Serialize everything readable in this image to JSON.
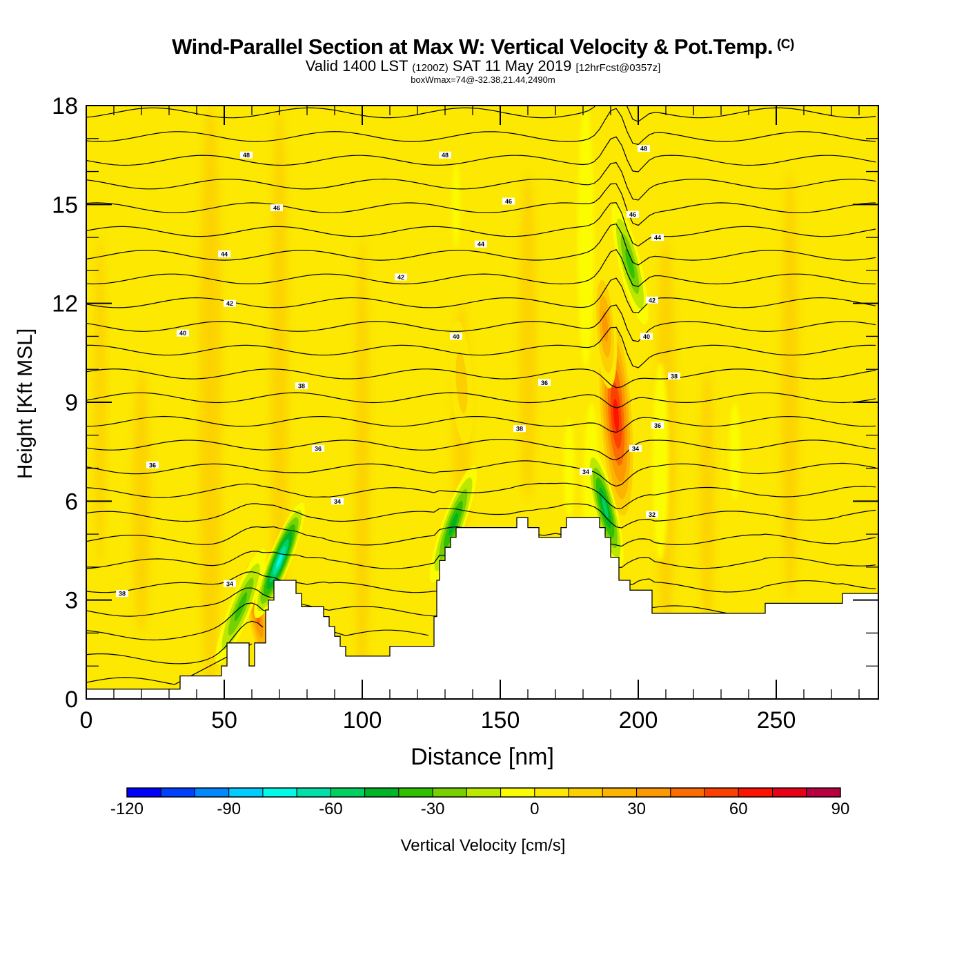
{
  "header": {
    "title": "Wind-Parallel Section at Max W: Vertical Velocity & Pot.Temp.",
    "copyright": "(C)",
    "subtitle_prefix": "Valid 1400 LST",
    "subtitle_utc": "(1200Z)",
    "subtitle_date": "SAT 11 May 2019",
    "subtitle_fcst": "[12hrFcst@0357z]",
    "subsubtitle": "boxWmax=74@-32.38,21.44,2490m"
  },
  "chart_data": {
    "type": "heatmap",
    "title": "Wind-Parallel Section at Max W: Vertical Velocity & Pot.Temp.",
    "xlabel": "Distance [nm]",
    "ylabel": "Height [Kft MSL]",
    "xlim": [
      0,
      287
    ],
    "ylim": [
      0,
      18
    ],
    "x_major_ticks": [
      0,
      50,
      100,
      150,
      200,
      250
    ],
    "x_minor_step": 10,
    "y_major_ticks": [
      0,
      3,
      6,
      9,
      12,
      15,
      18
    ],
    "y_minor_step": 1,
    "colorbar": {
      "label": "Vertical Velocity [cm/s]",
      "bounds": [
        -120,
        -110,
        -100,
        -90,
        -80,
        -70,
        -60,
        -50,
        -40,
        -30,
        -20,
        -10,
        0,
        10,
        20,
        30,
        40,
        50,
        60,
        70,
        80,
        90
      ],
      "tick_labels": [
        "-120",
        "-90",
        "-60",
        "-30",
        "0",
        "30",
        "60",
        "90"
      ],
      "colors": [
        "#0000ff",
        "#0040ff",
        "#0088ff",
        "#00ccff",
        "#00fce8",
        "#00e0a8",
        "#00d060",
        "#00b428",
        "#30c000",
        "#78d000",
        "#bce800",
        "#fcfc00",
        "#fce800",
        "#fcd000",
        "#fcb400",
        "#fc9800",
        "#fc6c00",
        "#fc4000",
        "#fc1400",
        "#e80018",
        "#b80040"
      ]
    },
    "terrain_kft": {
      "x": [
        0,
        34,
        34,
        49,
        49,
        51,
        51,
        59,
        59,
        61,
        61,
        65,
        65,
        66,
        66,
        68,
        68,
        69,
        69,
        70,
        70,
        76,
        76,
        78,
        78,
        80,
        80,
        86,
        86,
        88,
        88,
        90,
        90,
        92,
        92,
        94,
        94,
        96,
        96,
        110,
        110,
        118,
        118,
        126,
        126,
        127,
        127,
        128,
        128,
        130,
        130,
        132,
        132,
        134,
        134,
        136,
        136,
        138,
        138,
        140,
        140,
        156,
        156,
        160,
        160,
        164,
        164,
        172,
        172,
        174,
        174,
        176,
        176,
        178,
        178,
        186,
        186,
        188,
        188,
        190,
        190,
        193,
        193,
        197,
        197,
        205,
        205,
        208,
        208,
        246,
        246,
        274,
        274,
        287
      ],
      "y": [
        0.3,
        0.3,
        0.7,
        0.7,
        1.0,
        1.0,
        1.7,
        1.7,
        1.0,
        1.0,
        1.7,
        1.7,
        2.7,
        2.7,
        3.0,
        3.0,
        3.6,
        3.6,
        3.6,
        3.6,
        3.6,
        3.6,
        3.2,
        3.2,
        2.8,
        2.8,
        2.8,
        2.8,
        2.5,
        2.5,
        2.2,
        2.2,
        1.9,
        1.9,
        1.6,
        1.6,
        1.3,
        1.3,
        1.3,
        1.3,
        1.6,
        1.6,
        1.6,
        1.6,
        2.5,
        2.5,
        3.6,
        3.6,
        4.2,
        4.2,
        4.6,
        4.6,
        4.9,
        4.9,
        5.2,
        5.2,
        5.2,
        5.2,
        5.2,
        5.2,
        5.2,
        5.2,
        5.5,
        5.5,
        5.2,
        5.2,
        4.9,
        4.9,
        5.2,
        5.2,
        5.5,
        5.5,
        5.5,
        5.5,
        5.5,
        5.5,
        5.2,
        5.2,
        4.9,
        4.9,
        4.3,
        4.3,
        3.6,
        3.6,
        3.3,
        3.3,
        2.6,
        2.6,
        2.6,
        2.6,
        2.9,
        2.9,
        3.2,
        3.2
      ]
    },
    "theta_contours": {
      "units": "Pot.Temp. (labels)",
      "interval": 1,
      "levels": [
        28,
        29,
        30,
        31,
        32,
        33,
        34,
        35,
        36,
        37,
        38,
        39,
        40,
        41,
        42,
        43,
        44,
        45,
        46,
        47,
        48,
        49
      ],
      "labels": [
        {
          "value": "38",
          "x": 13,
          "y": 3.2
        },
        {
          "value": "34",
          "x": 52,
          "y": 3.5
        },
        {
          "value": "36",
          "x": 24,
          "y": 7.1
        },
        {
          "value": "36",
          "x": 84,
          "y": 7.6
        },
        {
          "value": "34",
          "x": 91,
          "y": 6.0
        },
        {
          "value": "38",
          "x": 78,
          "y": 9.5
        },
        {
          "value": "40",
          "x": 35,
          "y": 11.1
        },
        {
          "value": "42",
          "x": 52,
          "y": 12.0
        },
        {
          "value": "44",
          "x": 50,
          "y": 13.5
        },
        {
          "value": "46",
          "x": 69,
          "y": 14.9
        },
        {
          "value": "48",
          "x": 58,
          "y": 16.5
        },
        {
          "value": "42",
          "x": 114,
          "y": 12.8
        },
        {
          "value": "40",
          "x": 134,
          "y": 11.0
        },
        {
          "value": "38",
          "x": 157,
          "y": 8.2
        },
        {
          "value": "36",
          "x": 166,
          "y": 9.6
        },
        {
          "value": "44",
          "x": 143,
          "y": 13.8
        },
        {
          "value": "46",
          "x": 153,
          "y": 15.1
        },
        {
          "value": "48",
          "x": 130,
          "y": 16.5
        },
        {
          "value": "34",
          "x": 181,
          "y": 6.9
        },
        {
          "value": "34",
          "x": 199,
          "y": 7.6
        },
        {
          "value": "36",
          "x": 207,
          "y": 8.3
        },
        {
          "value": "38",
          "x": 213,
          "y": 9.8
        },
        {
          "value": "40",
          "x": 203,
          "y": 11.0
        },
        {
          "value": "42",
          "x": 205,
          "y": 12.1
        },
        {
          "value": "44",
          "x": 207,
          "y": 14.0
        },
        {
          "value": "46",
          "x": 198,
          "y": 14.7
        },
        {
          "value": "48",
          "x": 202,
          "y": 16.7
        },
        {
          "value": "32",
          "x": 205,
          "y": 5.6
        }
      ]
    },
    "vertical_velocity_features": [
      {
        "kind": "updraft",
        "x": 192,
        "y": 8.6,
        "peak_cm_s": 74,
        "note": "boxWmax"
      },
      {
        "kind": "updraft",
        "x": 188,
        "y": 11.3,
        "peak_cm_s": 40
      },
      {
        "kind": "downdraft",
        "x": 197,
        "y": 13.2,
        "peak_cm_s": -40
      },
      {
        "kind": "downdraft",
        "x": 188,
        "y": 5.8,
        "peak_cm_s": -60
      },
      {
        "kind": "updraft",
        "x": 62,
        "y": 2.6,
        "peak_cm_s": 50
      },
      {
        "kind": "downdraft",
        "x": 56,
        "y": 2.8,
        "peak_cm_s": -40
      },
      {
        "kind": "downdraft",
        "x": 70,
        "y": 4.2,
        "peak_cm_s": -80
      },
      {
        "kind": "downdraft",
        "x": 133,
        "y": 5.3,
        "peak_cm_s": -50
      },
      {
        "kind": "updraft",
        "x": 136,
        "y": 9.6,
        "peak_cm_s": 20
      }
    ]
  }
}
